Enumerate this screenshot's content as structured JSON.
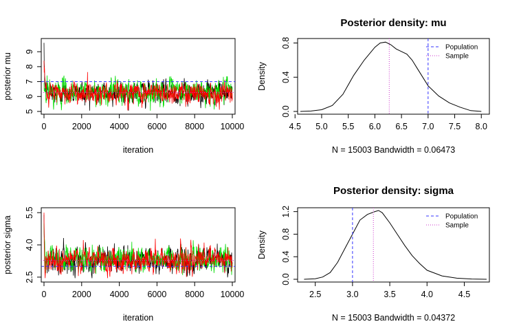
{
  "chart_data": [
    {
      "id": "trace-mu",
      "type": "line",
      "title": "",
      "xlabel": "iteration",
      "ylabel": "posterior mu",
      "xlim": [
        0,
        10000
      ],
      "ylim": [
        5,
        9.7
      ],
      "x_ticks": [
        "0",
        "2000",
        "4000",
        "6000",
        "8000",
        "10000"
      ],
      "x_tick_values": [
        0,
        2000,
        4000,
        6000,
        8000,
        10000
      ],
      "y_ticks": [
        "5",
        "6",
        "7",
        "8",
        "9"
      ],
      "y_tick_values": [
        5,
        6,
        7,
        8,
        9
      ],
      "colors": [
        "#000000",
        "#00dd00",
        "#ff0000"
      ],
      "series": [
        {
          "start": 9.6,
          "mean": 6.25,
          "sd": 0.38
        },
        {
          "start": 6.9,
          "mean": 6.3,
          "sd": 0.42
        },
        {
          "start": 8.4,
          "mean": 6.25,
          "sd": 0.4
        }
      ],
      "hlines": [
        {
          "value": 7.0,
          "color": "#3333ff",
          "dash": "4,3"
        },
        {
          "value": 6.27,
          "color": "#cc33cc",
          "dash": "1,2"
        }
      ],
      "grid": false
    },
    {
      "id": "density-mu",
      "type": "line",
      "title": "Posterior density: mu",
      "xlabel": "N = 15003   Bandwidth = 0.06473",
      "ylabel": "Density",
      "xlim": [
        4.6,
        8.1
      ],
      "ylim": [
        0,
        0.82
      ],
      "x_ticks": [
        "4.5",
        "5.0",
        "5.5",
        "6.0",
        "6.5",
        "7.0",
        "7.5",
        "8.0"
      ],
      "x_tick_values": [
        4.5,
        5.0,
        5.5,
        6.0,
        6.5,
        7.0,
        7.5,
        8.0
      ],
      "y_ticks": [
        "0.0",
        "0.4",
        "0.8"
      ],
      "y_tick_values": [
        0.0,
        0.4,
        0.8
      ],
      "x": [
        4.6,
        4.8,
        5.0,
        5.2,
        5.4,
        5.6,
        5.8,
        6.0,
        6.1,
        6.2,
        6.3,
        6.4,
        6.5,
        6.6,
        6.7,
        6.8,
        7.0,
        7.2,
        7.4,
        7.6,
        7.8,
        8.0
      ],
      "y": [
        0.0,
        0.005,
        0.02,
        0.07,
        0.2,
        0.42,
        0.6,
        0.75,
        0.8,
        0.81,
        0.78,
        0.73,
        0.7,
        0.67,
        0.6,
        0.5,
        0.3,
        0.18,
        0.1,
        0.05,
        0.01,
        0.0
      ],
      "vlines": [
        {
          "value": 7.0,
          "color": "#3333ff",
          "dash": "4,3"
        },
        {
          "value": 6.27,
          "color": "#cc33cc",
          "dash": "1,2"
        }
      ],
      "legend": {
        "position": "top-right",
        "items": [
          "Population",
          "Sample"
        ]
      },
      "grid": false
    },
    {
      "id": "trace-sigma",
      "type": "line",
      "title": "",
      "xlabel": "iteration",
      "ylabel": "posterior sigma",
      "xlim": [
        0,
        10000
      ],
      "ylim": [
        2.4,
        5.6
      ],
      "x_ticks": [
        "0",
        "2000",
        "4000",
        "6000",
        "8000",
        "10000"
      ],
      "x_tick_values": [
        0,
        2000,
        4000,
        6000,
        8000,
        10000
      ],
      "y_ticks": [
        "2.5",
        "4.0",
        "5.5"
      ],
      "y_tick_values": [
        2.5,
        4.0,
        5.5
      ],
      "colors": [
        "#000000",
        "#00dd00",
        "#ff0000"
      ],
      "series": [
        {
          "start": 5.4,
          "mean": 3.3,
          "sd": 0.3
        },
        {
          "start": 5.0,
          "mean": 3.35,
          "sd": 0.3
        },
        {
          "start": 5.5,
          "mean": 3.3,
          "sd": 0.32
        }
      ],
      "hlines": [
        {
          "value": 3.0,
          "color": "#3333ff",
          "dash": "4,3"
        },
        {
          "value": 3.28,
          "color": "#cc33cc",
          "dash": "1,2"
        }
      ],
      "grid": false
    },
    {
      "id": "density-sigma",
      "type": "line",
      "title": "Posterior density: sigma",
      "xlabel": "N = 15003   Bandwidth = 0.04372",
      "ylabel": "Density",
      "xlim": [
        2.3,
        4.8
      ],
      "ylim": [
        0,
        1.22
      ],
      "x_ticks": [
        "2.5",
        "3.0",
        "3.5",
        "4.0",
        "4.5"
      ],
      "x_tick_values": [
        2.5,
        3.0,
        3.5,
        4.0,
        4.5
      ],
      "y_ticks": [
        "0.0",
        "0.4",
        "0.8",
        "1.2"
      ],
      "y_tick_values": [
        0.0,
        0.4,
        0.8,
        1.2
      ],
      "x": [
        2.35,
        2.5,
        2.6,
        2.7,
        2.8,
        2.9,
        3.0,
        3.1,
        3.2,
        3.3,
        3.35,
        3.4,
        3.5,
        3.6,
        3.7,
        3.8,
        3.9,
        4.0,
        4.2,
        4.4,
        4.6,
        4.8
      ],
      "y": [
        0.0,
        0.01,
        0.04,
        0.12,
        0.3,
        0.55,
        0.8,
        1.05,
        1.15,
        1.2,
        1.22,
        1.18,
        1.0,
        0.8,
        0.6,
        0.42,
        0.28,
        0.16,
        0.06,
        0.02,
        0.005,
        0.0
      ],
      "vlines": [
        {
          "value": 3.0,
          "color": "#3333ff",
          "dash": "4,3"
        },
        {
          "value": 3.28,
          "color": "#cc33cc",
          "dash": "1,2"
        }
      ],
      "legend": {
        "position": "top-right",
        "items": [
          "Population",
          "Sample"
        ]
      },
      "grid": false
    }
  ]
}
